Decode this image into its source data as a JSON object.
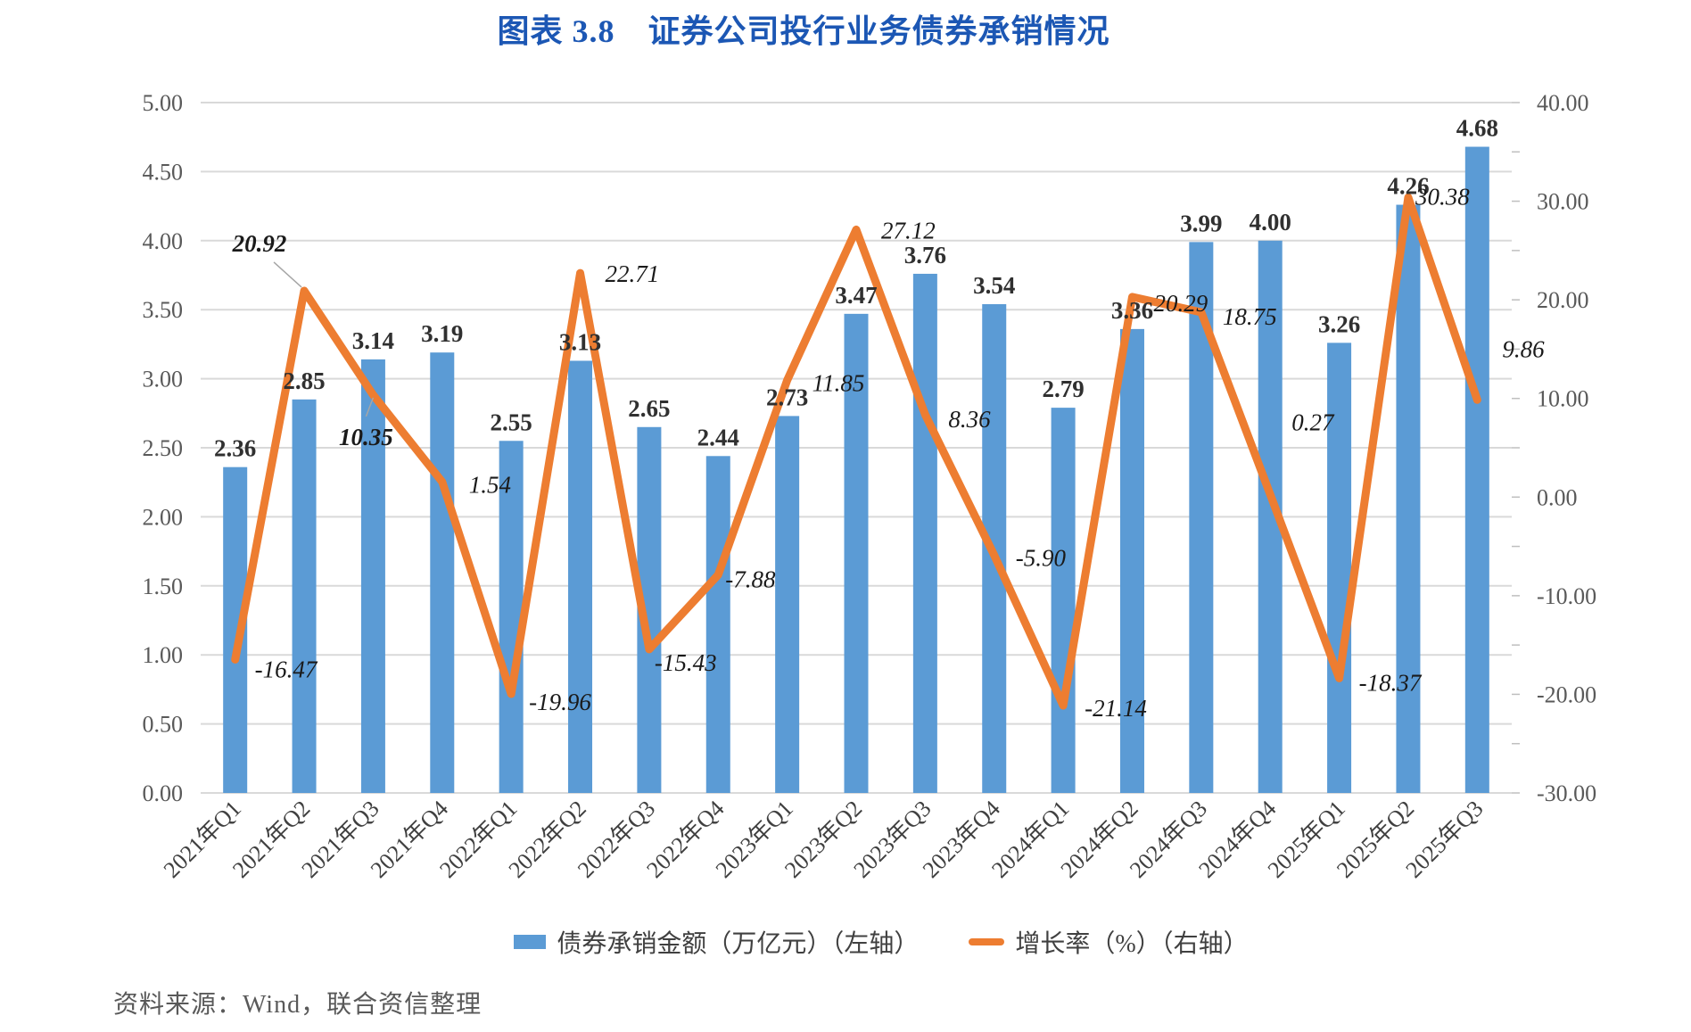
{
  "title": "图表 3.8　证券公司投行业务债券承销情况",
  "source": "资料来源：Wind，联合资信整理",
  "legend": {
    "bars": "债券承销金额（万亿元）（左轴）",
    "line": "增长率（%）（右轴）"
  },
  "colors": {
    "title": "#1C57B4",
    "bar": "#5B9BD5",
    "line": "#ED7D31",
    "grid": "#D9D9D9",
    "axis_text": "#595959",
    "bar_label": "#303030",
    "line_label": "#1a1a1a",
    "x_label": "#404040",
    "source": "#595959"
  },
  "chart_data": {
    "type": "bar",
    "subtype": "combo-bar-line",
    "title": "图表 3.8　证券公司投行业务债券承销情况",
    "categories": [
      "2021年Q1",
      "2021年Q2",
      "2021年Q3",
      "2021年Q4",
      "2022年Q1",
      "2022年Q2",
      "2022年Q3",
      "2022年Q4",
      "2023年Q1",
      "2023年Q2",
      "2023年Q3",
      "2023年Q4",
      "2024年Q1",
      "2024年Q2",
      "2024年Q3",
      "2024年Q4",
      "2025年Q1",
      "2025年Q2",
      "2025年Q3"
    ],
    "series": [
      {
        "name": "债券承销金额（万亿元）（左轴）",
        "type": "bar",
        "axis": "left",
        "color": "#5B9BD5",
        "values": [
          2.36,
          2.85,
          3.14,
          3.19,
          2.55,
          3.13,
          2.65,
          2.44,
          2.73,
          3.47,
          3.76,
          3.54,
          2.79,
          3.36,
          3.99,
          4.0,
          3.26,
          4.26,
          4.68
        ]
      },
      {
        "name": "增长率（%）（右轴）",
        "type": "line",
        "axis": "right",
        "color": "#ED7D31",
        "values": [
          -16.47,
          20.92,
          10.35,
          1.54,
          -19.96,
          22.71,
          -15.43,
          -7.88,
          11.85,
          27.12,
          8.36,
          -5.9,
          -21.14,
          20.29,
          18.75,
          0.27,
          -18.37,
          30.38,
          9.86
        ]
      }
    ],
    "left_axis": {
      "min": 0,
      "max": 5,
      "step": 0.5,
      "ticks": [
        "0.00",
        "0.50",
        "1.00",
        "1.50",
        "2.00",
        "2.50",
        "3.00",
        "3.50",
        "4.00",
        "4.50",
        "5.00"
      ]
    },
    "right_axis": {
      "min": -30,
      "max": 40,
      "step": 10,
      "ticks": [
        "-30.00",
        "-20.00",
        "-10.00",
        "0.00",
        "10.00",
        "20.00",
        "30.00",
        "40.00"
      ]
    },
    "grid": true,
    "data_labels": true,
    "legend_position": "bottom"
  }
}
